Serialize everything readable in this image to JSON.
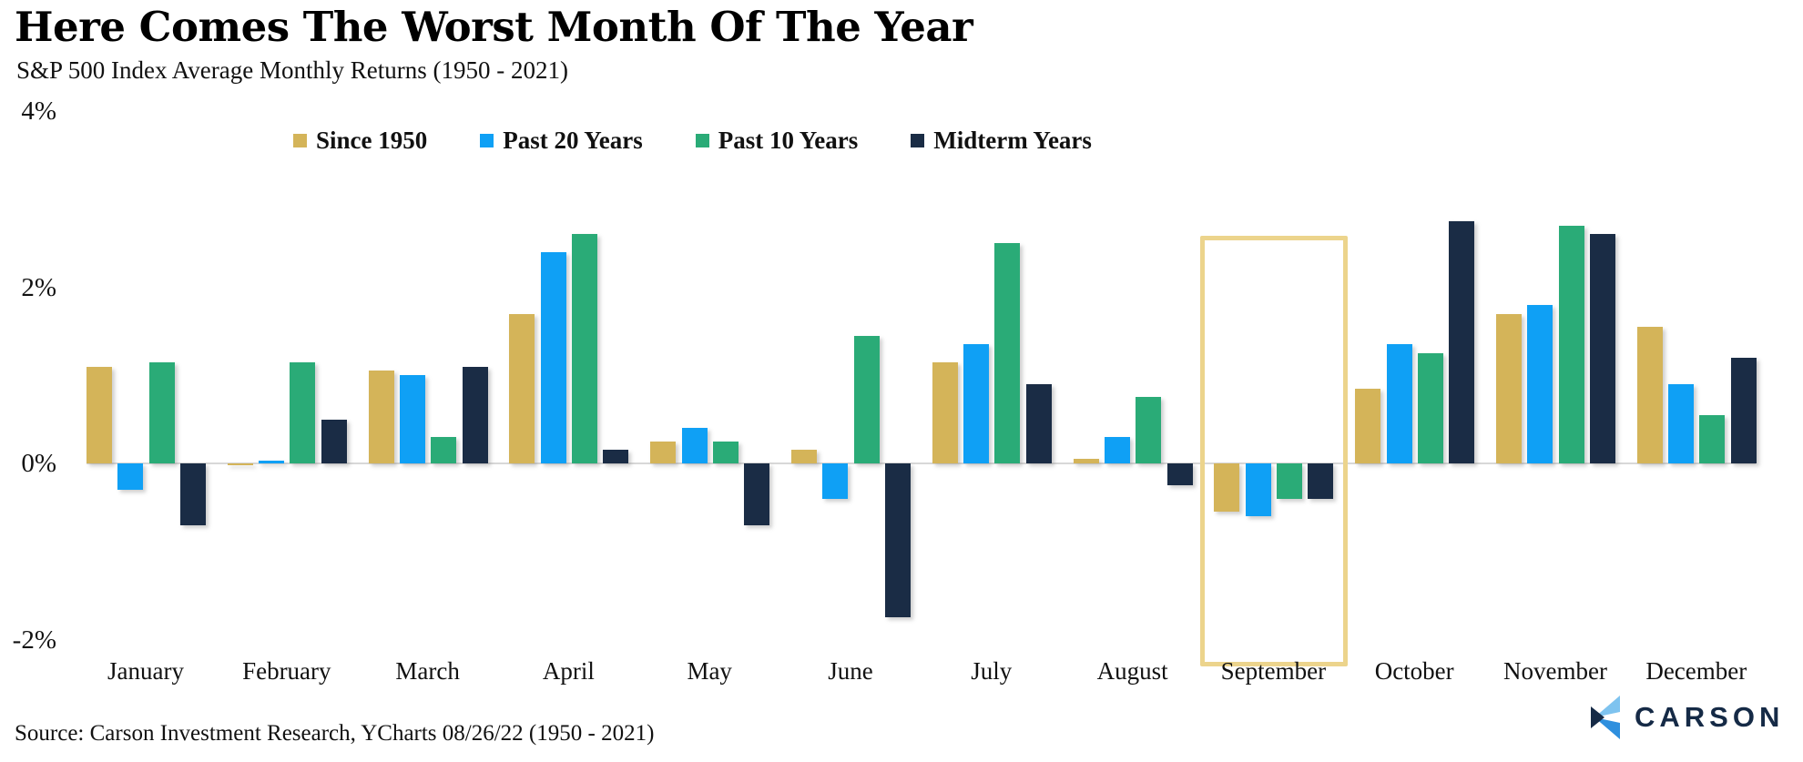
{
  "title": "Here Comes The Worst Month Of The Year",
  "subtitle": "S&P 500 Index Average Monthly Returns (1950 - 2021)",
  "source": "Source: Carson Investment Research, YCharts 08/26/22 (1950 - 2021)",
  "logo_text": "CARSON",
  "highlighted_month": "September",
  "colors": {
    "since_1950": "#d4b459",
    "past_20_years": "#0fa0f5",
    "past_10_years": "#2aab77",
    "midterm_years": "#1a2c45",
    "axis_line": "#d8d8d8",
    "highlight_box": "#ecd48c",
    "logo_navy": "#152a46",
    "logo_light_blue": "#7ec3ef",
    "logo_mid_blue": "#2e8fde"
  },
  "chart_data": {
    "type": "bar",
    "title": "Here Comes The Worst Month Of The Year",
    "subtitle": "S&P 500 Index Average Monthly Returns (1950 - 2021)",
    "categories": [
      "January",
      "February",
      "March",
      "April",
      "May",
      "June",
      "July",
      "August",
      "September",
      "October",
      "November",
      "December"
    ],
    "series": [
      {
        "name": "Since 1950",
        "color": "#d4b459",
        "values": [
          1.1,
          -0.02,
          1.05,
          1.7,
          0.25,
          0.15,
          1.15,
          0.05,
          -0.55,
          0.85,
          1.7,
          1.55
        ]
      },
      {
        "name": "Past 20 Years",
        "color": "#0fa0f5",
        "values": [
          -0.3,
          0.03,
          1.0,
          2.4,
          0.4,
          -0.4,
          1.35,
          0.3,
          -0.6,
          1.35,
          1.8,
          0.9
        ]
      },
      {
        "name": "Past 10 Years",
        "color": "#2aab77",
        "values": [
          1.15,
          1.15,
          0.3,
          2.6,
          0.25,
          1.45,
          2.5,
          0.75,
          -0.4,
          1.25,
          2.7,
          0.55
        ]
      },
      {
        "name": "Midterm Years",
        "color": "#1a2c45",
        "values": [
          -0.7,
          0.5,
          1.1,
          0.15,
          -0.7,
          -1.75,
          0.9,
          -0.25,
          -0.4,
          2.75,
          2.6,
          1.2
        ]
      }
    ],
    "xlabel": "",
    "ylabel": "",
    "y_ticks": [
      {
        "label": "4%",
        "value": 4
      },
      {
        "label": "2%",
        "value": 2
      },
      {
        "label": "0%",
        "value": 0
      },
      {
        "label": "-2%",
        "value": -2
      }
    ],
    "ylim": [
      -2.2,
      4.05
    ],
    "grid": false,
    "legend_position": "top",
    "annotation": "gold rectangle highlighting the September group"
  }
}
